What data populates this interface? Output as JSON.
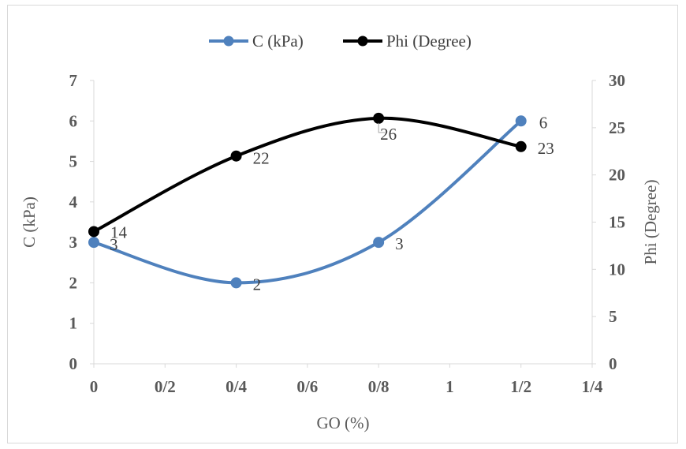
{
  "chart_data": {
    "type": "line",
    "xlabel": "GO (%)",
    "ylabel_left": "C (kPa)",
    "ylabel_right": "Phi (Degree)",
    "x_ticks": [
      "0",
      "0/2",
      "0/4",
      "0/6",
      "0/8",
      "1",
      "1/2",
      "1/4"
    ],
    "xlim": [
      0,
      1.4
    ],
    "ylim_left": [
      0,
      7
    ],
    "ylim_right": [
      0,
      30
    ],
    "y_ticks_left": [
      "0",
      "1",
      "2",
      "3",
      "4",
      "5",
      "6",
      "7"
    ],
    "y_ticks_right": [
      "0",
      "5",
      "10",
      "15",
      "20",
      "25",
      "30"
    ],
    "series": [
      {
        "name": "C (kPa)",
        "axis": "left",
        "color": "#4f81bd",
        "x": [
          0,
          0.4,
          0.8,
          1.2
        ],
        "y": [
          3,
          2,
          3,
          6
        ],
        "labels": [
          "3",
          "2",
          "3",
          "6"
        ]
      },
      {
        "name": "Phi (Degree)",
        "axis": "right",
        "color": "#000000",
        "x": [
          0,
          0.4,
          0.8,
          1.2
        ],
        "y": [
          14,
          22,
          26,
          23
        ],
        "labels": [
          "14",
          "22",
          "26",
          "23"
        ]
      }
    ],
    "legend_position": "top",
    "grid": false
  }
}
